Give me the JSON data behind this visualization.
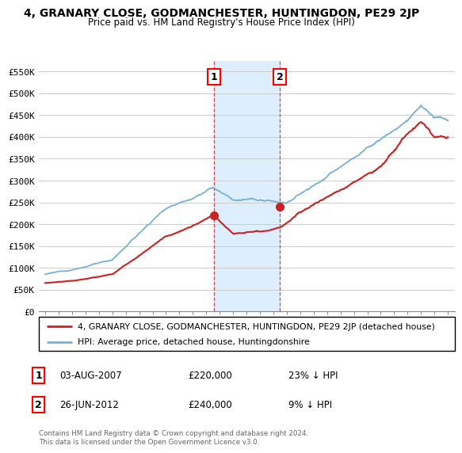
{
  "title": "4, GRANARY CLOSE, GODMANCHESTER, HUNTINGDON, PE29 2JP",
  "subtitle": "Price paid vs. HM Land Registry's House Price Index (HPI)",
  "legend_line1": "4, GRANARY CLOSE, GODMANCHESTER, HUNTINGDON, PE29 2JP (detached house)",
  "legend_line2": "HPI: Average price, detached house, Huntingdonshire",
  "footer": "Contains HM Land Registry data © Crown copyright and database right 2024.\nThis data is licensed under the Open Government Licence v3.0.",
  "transaction1_date": "03-AUG-2007",
  "transaction1_price": "£220,000",
  "transaction1_hpi": "23% ↓ HPI",
  "transaction2_date": "26-JUN-2012",
  "transaction2_price": "£240,000",
  "transaction2_hpi": "9% ↓ HPI",
  "hpi_color": "#7ab0d4",
  "price_color": "#cc2222",
  "shaded_color": "#ddeeff",
  "ylim_min": 0,
  "ylim_max": 575000,
  "yticks": [
    0,
    50000,
    100000,
    150000,
    200000,
    250000,
    300000,
    350000,
    400000,
    450000,
    500000,
    550000
  ],
  "transaction1_x": 2007.58,
  "transaction1_y": 220000,
  "transaction2_x": 2012.48,
  "transaction2_y": 240000,
  "shade_x1": 2007.58,
  "shade_x2": 2012.48,
  "xlim_min": 1994.5,
  "xlim_max": 2025.5
}
